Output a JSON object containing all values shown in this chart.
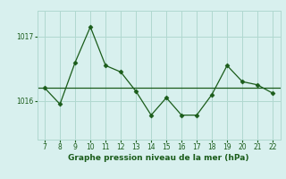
{
  "x": [
    7,
    8,
    9,
    10,
    11,
    12,
    13,
    14,
    15,
    16,
    17,
    18,
    19,
    20,
    21,
    22
  ],
  "y": [
    1016.2,
    1015.95,
    1016.6,
    1017.15,
    1016.55,
    1016.45,
    1016.15,
    1015.78,
    1016.05,
    1015.78,
    1015.78,
    1016.1,
    1016.55,
    1016.3,
    1016.25,
    1016.12
  ],
  "hline": 1016.21,
  "bg_color": "#d8f0ee",
  "line_color": "#1a5c1a",
  "grid_color": "#b0d8d0",
  "xlabel": "Graphe pression niveau de la mer (hPa)",
  "yticks": [
    1016,
    1017
  ],
  "xticks": [
    7,
    8,
    9,
    10,
    11,
    12,
    13,
    14,
    15,
    16,
    17,
    18,
    19,
    20,
    21,
    22
  ],
  "xlim": [
    6.5,
    22.5
  ],
  "ylim": [
    1015.4,
    1017.4
  ]
}
